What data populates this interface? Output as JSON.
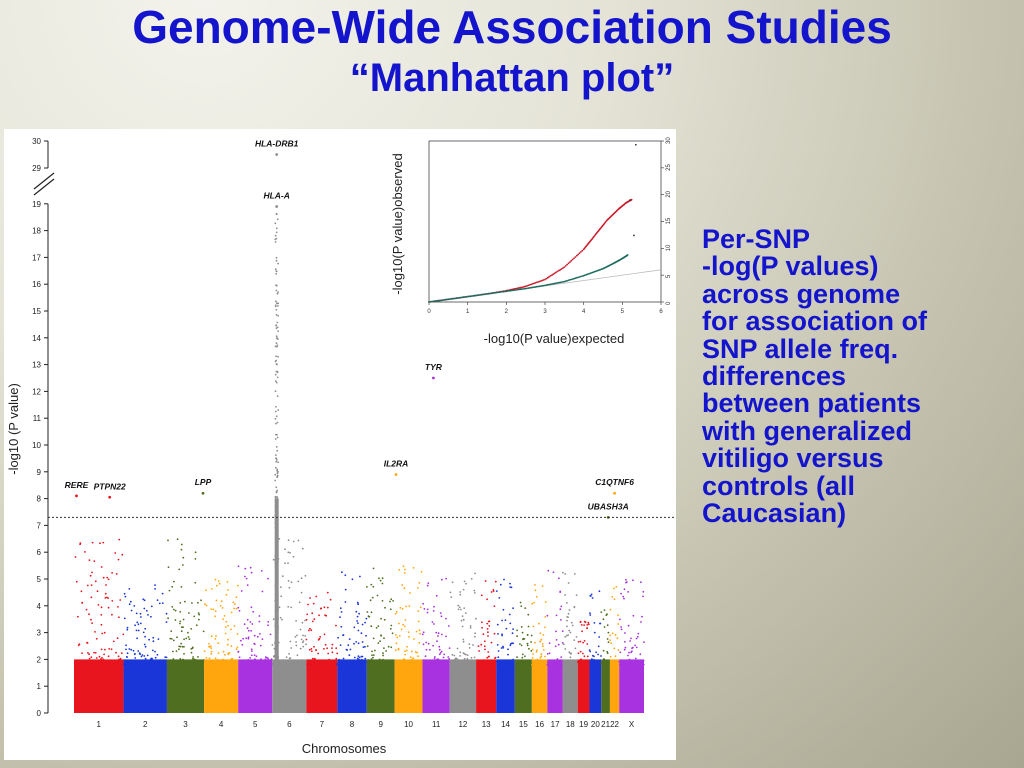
{
  "slide": {
    "title": "Genome-Wide Association Studies",
    "subtitle": "“Manhattan plot”",
    "description_lines": [
      "Per-SNP",
      "-log(P values)",
      "across genome",
      "for association of",
      "SNP allele freq.",
      "differences",
      "between patients",
      "with generalized",
      "vitiligo versus",
      "controls (all",
      "Caucasian)"
    ]
  },
  "chart_data": [
    {
      "type": "scatter",
      "subtype": "manhattan",
      "xlabel": "Chromosomes",
      "ylabel": "-log10 (P value)",
      "ylim": [
        0,
        30
      ],
      "y_axis_break": [
        19,
        29
      ],
      "y_ticks": [
        0,
        1,
        2,
        3,
        4,
        5,
        6,
        7,
        8,
        9,
        10,
        11,
        12,
        13,
        14,
        15,
        16,
        17,
        18,
        19,
        29,
        30
      ],
      "significance_threshold": 7.3,
      "chromosomes": [
        "1",
        "2",
        "3",
        "4",
        "5",
        "6",
        "7",
        "8",
        "9",
        "10",
        "11",
        "12",
        "13",
        "14",
        "15",
        "16",
        "17",
        "18",
        "19",
        "20",
        "21",
        "22",
        "X"
      ],
      "chromosome_colors": [
        "#e8141e",
        "#1a36d8",
        "#4f6e1f",
        "#ffa50e",
        "#a832e0",
        "#8e8e8e",
        "#e8141e",
        "#1a36d8",
        "#4f6e1f",
        "#ffa50e",
        "#a832e0",
        "#8e8e8e",
        "#e8141e",
        "#1a36d8",
        "#4f6e1f",
        "#ffa50e",
        "#a832e0",
        "#8e8e8e",
        "#e8141e",
        "#1a36d8",
        "#4f6e1f",
        "#ffa50e",
        "#a832e0"
      ],
      "chromosome_width_weights": [
        1.6,
        1.4,
        1.2,
        1.1,
        1.1,
        1.1,
        1.0,
        0.95,
        0.9,
        0.9,
        0.88,
        0.85,
        0.65,
        0.6,
        0.55,
        0.5,
        0.5,
        0.48,
        0.38,
        0.38,
        0.28,
        0.3,
        0.8
      ],
      "chromosome_max_background": [
        6.5,
        4.8,
        6.5,
        5.0,
        5.5,
        7.0,
        4.5,
        5.5,
        5.5,
        5.5,
        5.2,
        5.5,
        5.0,
        5.4,
        4.2,
        4.8,
        5.5,
        5.3,
        3.5,
        4.6,
        4.0,
        6.3,
        5.0
      ],
      "gene_annotations": [
        {
          "gene": "RERE",
          "chromosome": "1",
          "pos": 0.05,
          "value": 8.1
        },
        {
          "gene": "PTPN22",
          "chromosome": "1",
          "pos": 0.72,
          "value": 8.05
        },
        {
          "gene": "LPP",
          "chromosome": "3",
          "pos": 0.97,
          "value": 8.2
        },
        {
          "gene": "HLA-DRB1",
          "chromosome": "6",
          "pos": 0.13,
          "value": 29.5
        },
        {
          "gene": "HLA-A",
          "chromosome": "6",
          "pos": 0.13,
          "value": 18.9
        },
        {
          "gene": "IL2RA",
          "chromosome": "10",
          "pos": 0.05,
          "value": 8.9
        },
        {
          "gene": "TYR",
          "chromosome": "11",
          "pos": 0.4,
          "value": 12.5
        },
        {
          "gene": "UBASH3A",
          "chromosome": "21",
          "pos": 0.8,
          "value": 7.3
        },
        {
          "gene": "C1QTNF6",
          "chromosome": "22",
          "pos": 0.5,
          "value": 8.2
        }
      ]
    },
    {
      "type": "scatter",
      "subtype": "qq-plot",
      "xlabel": "-log10(P value)expected",
      "ylabel": "-log10(P value)observed",
      "xlim": [
        0,
        6
      ],
      "ylim": [
        0,
        30
      ],
      "x_ticks": [
        0,
        1,
        2,
        3,
        4,
        5,
        6
      ],
      "y_ticks": [
        0,
        5,
        10,
        15,
        20,
        25,
        30
      ],
      "series": [
        {
          "color": "#cc1a2a",
          "points": [
            [
              0,
              0
            ],
            [
              0.5,
              0.5
            ],
            [
              1,
              1.0
            ],
            [
              1.5,
              1.5
            ],
            [
              2,
              2.1
            ],
            [
              2.5,
              2.9
            ],
            [
              3,
              4.2
            ],
            [
              3.5,
              6.5
            ],
            [
              4,
              9.8
            ],
            [
              4.3,
              12.5
            ],
            [
              4.6,
              15.2
            ],
            [
              4.9,
              17.3
            ],
            [
              5.1,
              18.5
            ],
            [
              5.25,
              19.1
            ]
          ]
        },
        {
          "color": "#1f6b60",
          "points": [
            [
              0,
              0
            ],
            [
              0.5,
              0.5
            ],
            [
              1,
              1.0
            ],
            [
              1.5,
              1.5
            ],
            [
              2,
              2.0
            ],
            [
              2.5,
              2.5
            ],
            [
              3,
              3.1
            ],
            [
              3.5,
              3.8
            ],
            [
              4,
              4.9
            ],
            [
              4.5,
              6.2
            ],
            [
              4.8,
              7.3
            ],
            [
              5.0,
              8.1
            ],
            [
              5.15,
              8.8
            ]
          ]
        }
      ],
      "outliers": [
        [
          5.35,
          29.3
        ],
        [
          5.3,
          12.4
        ],
        [
          5.2,
          19.0
        ]
      ],
      "reference_line": [
        [
          0,
          0
        ],
        [
          6,
          6
        ]
      ]
    }
  ]
}
